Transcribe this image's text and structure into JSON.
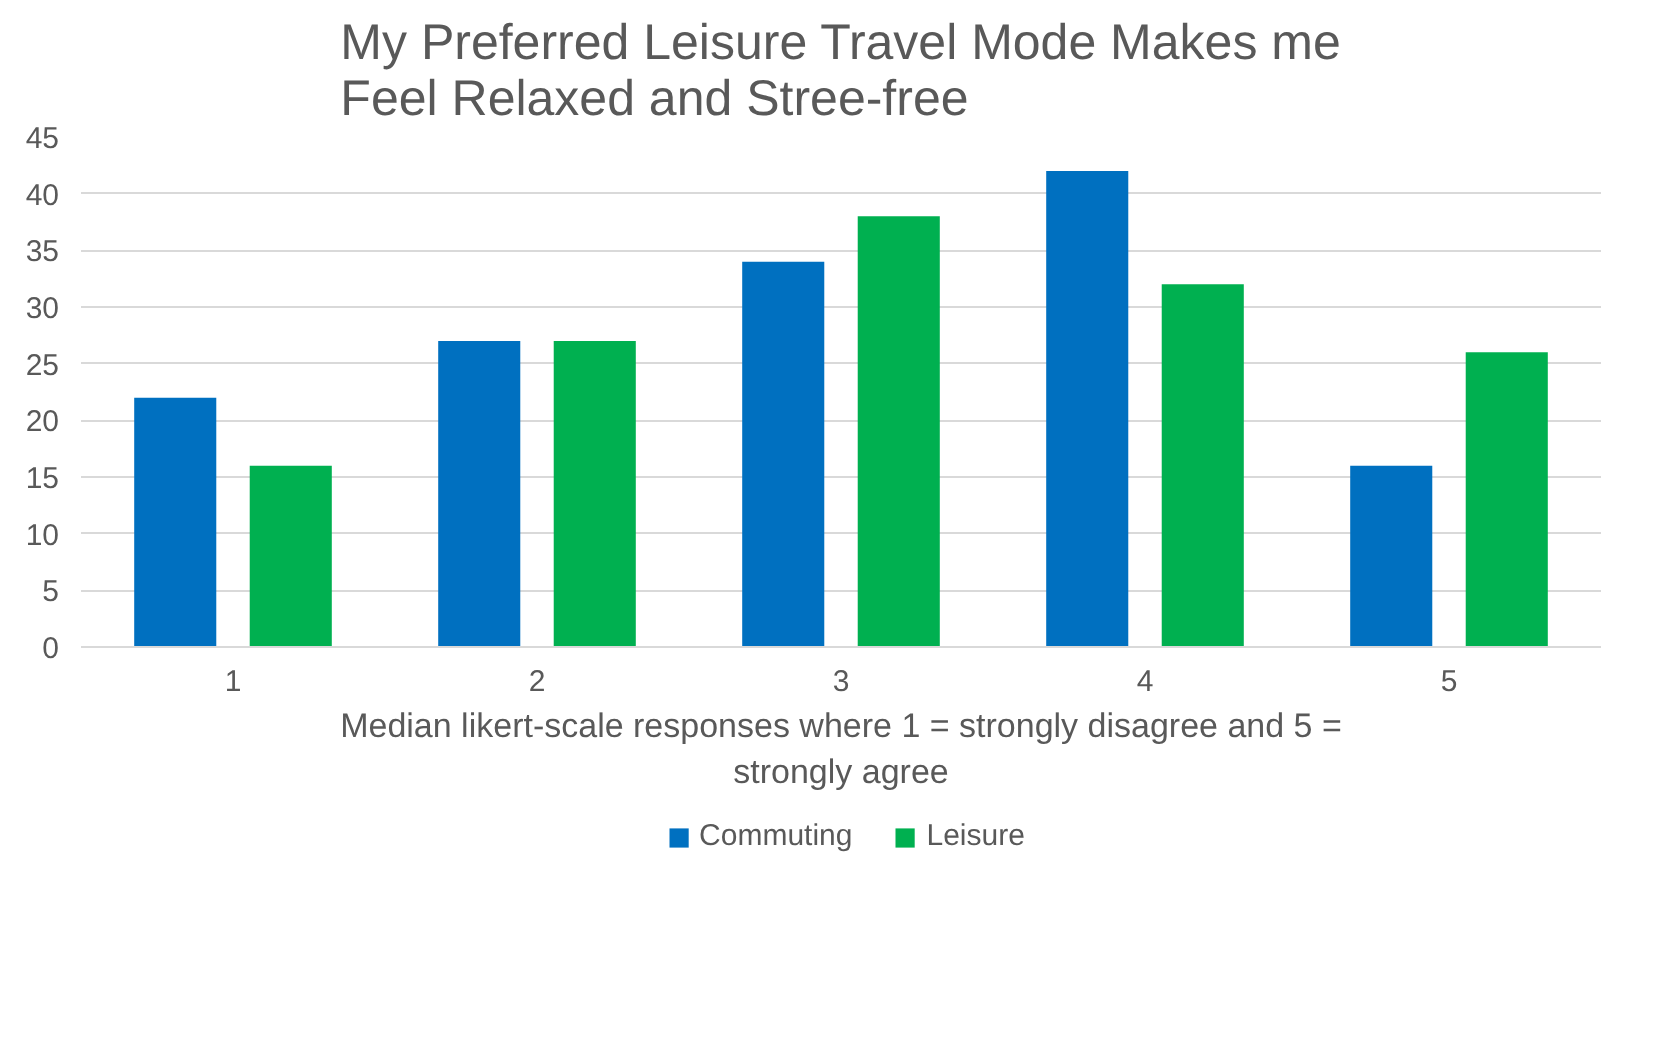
{
  "chart_data": {
    "type": "bar",
    "title": "My Preferred Leisure Travel Mode Makes me\nFeel Relaxed and Stree-free",
    "xlabel": "Median likert-scale responses where 1 = strongly disagree and 5 =\nstrongly agree",
    "categories": [
      "1",
      "2",
      "3",
      "4",
      "5"
    ],
    "series": [
      {
        "name": "Commuting",
        "color": "#0070c0",
        "values": [
          22,
          27,
          34,
          42,
          16
        ]
      },
      {
        "name": "Leisure",
        "color": "#00b050",
        "values": [
          16,
          27,
          38,
          32,
          26
        ]
      }
    ],
    "ylim": [
      0,
      45
    ],
    "yticks": [
      0,
      5,
      10,
      15,
      20,
      25,
      30,
      35,
      40,
      45
    ],
    "grid": "y",
    "legend": "bottom"
  }
}
